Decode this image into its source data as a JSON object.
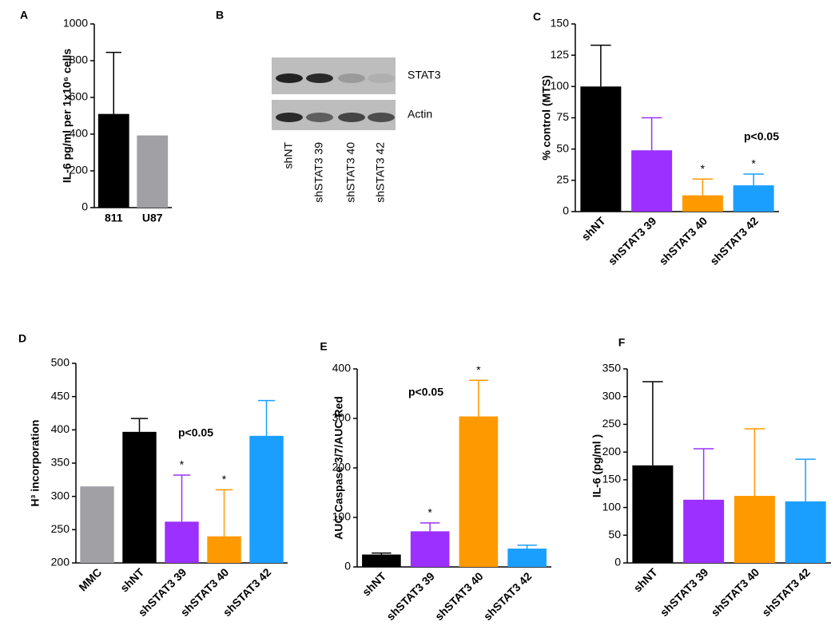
{
  "chart_data": [
    {
      "type": "bar",
      "label": "A",
      "ylabel": "IL-6 pg/ml per 1x10⁶ cells",
      "categories": [
        "811",
        "U87"
      ],
      "values": [
        510,
        393
      ],
      "errors": [
        335,
        null
      ],
      "colors": [
        "#000000",
        "#a0a0a5"
      ],
      "ylim": [
        0,
        1000
      ],
      "yticks": [
        0,
        200,
        400,
        600,
        800,
        1000
      ]
    },
    {
      "type": "blot",
      "label": "B",
      "rows": [
        "STAT3",
        "Actin"
      ],
      "categories": [
        "shNT",
        "shSTAT3 39",
        "shSTAT3 40",
        "shSTAT3 42"
      ]
    },
    {
      "type": "bar",
      "label": "C",
      "ylabel": "% control  (MTS)",
      "annotation": "p<0.05",
      "categories": [
        "shNT",
        "shSTAT3 39",
        "shSTAT3 40",
        "shSTAT3 42"
      ],
      "values": [
        100,
        49,
        13,
        21
      ],
      "errors": [
        33,
        26,
        13,
        9
      ],
      "significance": [
        null,
        null,
        "*",
        "*"
      ],
      "colors": [
        "#000000",
        "#9b30ff",
        "#ff9900",
        "#1a9fff"
      ],
      "ylim": [
        0,
        150
      ],
      "yticks": [
        0,
        25,
        50,
        75,
        100,
        125,
        150
      ]
    },
    {
      "type": "bar",
      "label": "D",
      "ylabel": "H³ incorporation",
      "annotation": "p<0.05",
      "categories": [
        "MMC",
        "shNT",
        "shSTAT3 39",
        "shSTAT3 40",
        "shSTAT3 42"
      ],
      "values": [
        315,
        397,
        262,
        240,
        391
      ],
      "errors": [
        null,
        20,
        70,
        70,
        53
      ],
      "significance": [
        null,
        null,
        "*",
        "*",
        null
      ],
      "colors": [
        "#a0a0a5",
        "#000000",
        "#9b30ff",
        "#ff9900",
        "#1a9fff"
      ],
      "ylim": [
        200,
        500
      ],
      "yticks": [
        200,
        250,
        300,
        350,
        400,
        450,
        500
      ]
    },
    {
      "type": "bar",
      "label": "E",
      "ylabel": "AUC Caspase 3/7/AUC Red",
      "annotation": "p<0.05",
      "categories": [
        "shNT",
        "shSTAT3 39",
        "shSTAT3 40",
        "shSTAT3 42"
      ],
      "values": [
        25,
        72,
        304,
        37
      ],
      "errors": [
        3,
        17,
        73,
        7
      ],
      "significance": [
        null,
        "*",
        "*",
        null
      ],
      "colors": [
        "#000000",
        "#9b30ff",
        "#ff9900",
        "#1a9fff"
      ],
      "ylim": [
        0,
        400
      ],
      "yticks": [
        0,
        100,
        200,
        300,
        400
      ]
    },
    {
      "type": "bar",
      "label": "F",
      "ylabel": "IL-6 (pg/ml )",
      "categories": [
        "shNT",
        "shSTAT3 39",
        "shSTAT3 40",
        "shSTAT3 42"
      ],
      "values": [
        176,
        114,
        121,
        111
      ],
      "errors": [
        151,
        92,
        121,
        76
      ],
      "colors": [
        "#000000",
        "#9b30ff",
        "#ff9900",
        "#1a9fff"
      ],
      "ylim": [
        0,
        350
      ],
      "yticks": [
        0,
        50,
        100,
        150,
        200,
        250,
        300,
        350
      ]
    }
  ]
}
